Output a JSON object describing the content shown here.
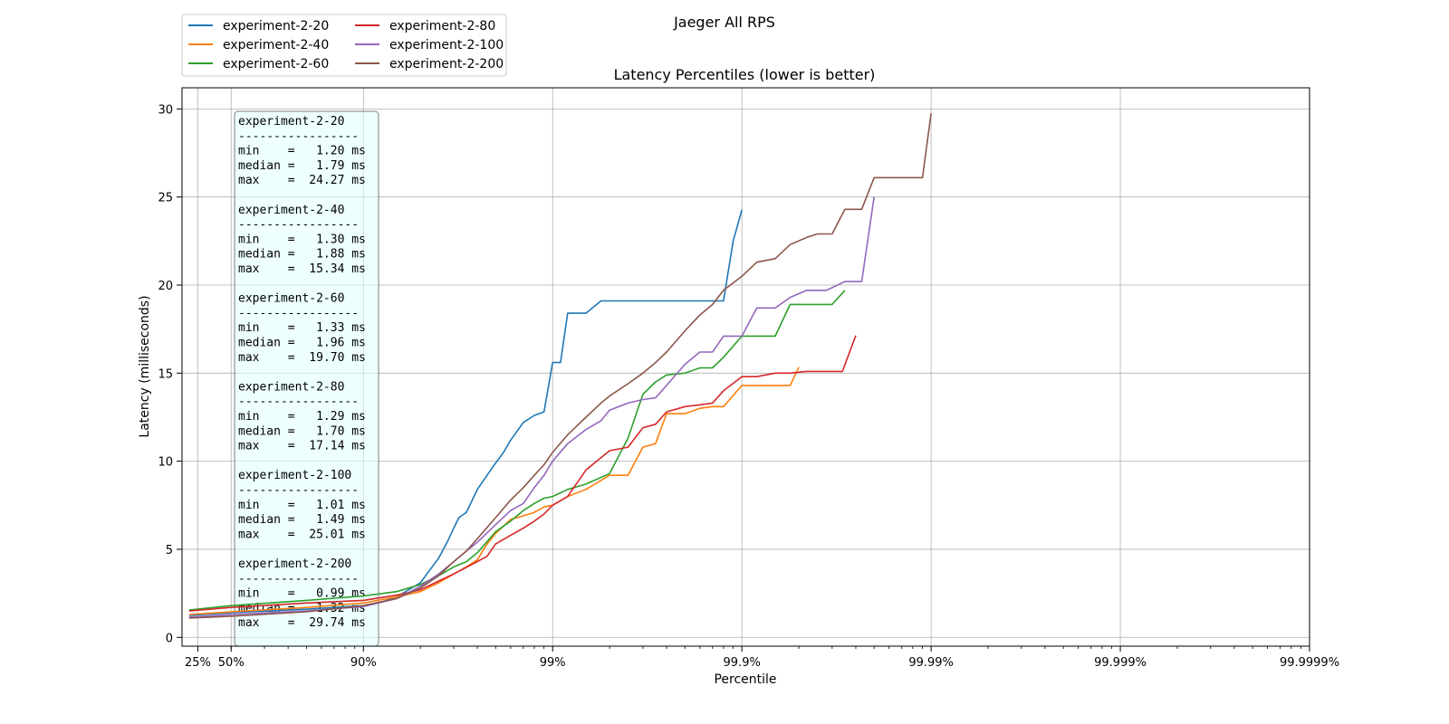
{
  "chart_data": {
    "type": "line",
    "suptitle": "Jaeger All RPS",
    "title": "Latency Percentiles (lower is better)",
    "xlabel": "Percentile",
    "ylabel": "Latency (milliseconds)",
    "x_scale": "log of 1/(1-p)",
    "xlim": [
      1.1,
      1000000
    ],
    "ylim": [
      -0.5,
      31.2
    ],
    "grid": true,
    "legend_placement": "upper-left above plot (2 columns)",
    "x_ticks": [
      {
        "inv": 1.333,
        "label": "25%"
      },
      {
        "inv": 2,
        "label": "50%"
      },
      {
        "inv": 10,
        "label": "90%"
      },
      {
        "inv": 100,
        "label": "99%"
      },
      {
        "inv": 1000,
        "label": "99.9%"
      },
      {
        "inv": 10000,
        "label": "99.99%"
      },
      {
        "inv": 100000,
        "label": "99.999%"
      },
      {
        "inv": 1000000,
        "label": "99.9999%"
      }
    ],
    "y_ticks": [
      0,
      5,
      10,
      15,
      20,
      25,
      30
    ],
    "series": [
      {
        "name": "experiment-2-20",
        "color": "#1f77b4",
        "x": [
          1.2,
          2,
          5,
          10,
          12.5,
          15,
          20,
          25,
          28,
          30,
          32,
          35,
          40,
          45,
          50,
          55,
          60,
          70,
          80,
          90,
          100,
          110,
          120,
          150,
          180,
          200,
          250,
          300,
          350,
          400,
          500,
          600,
          700,
          800,
          900,
          1000
        ],
        "y": [
          1.25,
          1.4,
          1.6,
          1.8,
          2.0,
          2.3,
          3.1,
          4.5,
          5.5,
          6.2,
          6.8,
          7.1,
          8.4,
          9.2,
          9.9,
          10.5,
          11.2,
          12.2,
          12.6,
          12.8,
          15.6,
          15.6,
          18.4,
          18.4,
          19.1,
          19.1,
          19.1,
          19.1,
          19.1,
          19.1,
          19.1,
          19.1,
          19.1,
          19.1,
          22.5,
          24.27
        ]
      },
      {
        "name": "experiment-2-40",
        "color": "#ff7f0e",
        "x": [
          1.2,
          2,
          5,
          10,
          15,
          20,
          25,
          30,
          35,
          40,
          45,
          50,
          60,
          70,
          80,
          90,
          100,
          120,
          150,
          200,
          250,
          300,
          350,
          400,
          500,
          600,
          700,
          800,
          1000,
          1200,
          1500,
          1800,
          2000
        ],
        "y": [
          1.3,
          1.45,
          1.7,
          1.95,
          2.3,
          2.6,
          3.1,
          3.6,
          4.0,
          4.4,
          5.3,
          5.9,
          6.7,
          6.9,
          7.1,
          7.4,
          7.5,
          8.0,
          8.4,
          9.2,
          9.2,
          10.8,
          11.0,
          12.7,
          12.7,
          13.0,
          13.1,
          13.1,
          14.3,
          14.3,
          14.3,
          14.3,
          15.34
        ]
      },
      {
        "name": "experiment-2-60",
        "color": "#2ca02c",
        "x": [
          1.2,
          2,
          5,
          10,
          15,
          20,
          25,
          30,
          35,
          40,
          50,
          60,
          70,
          80,
          90,
          100,
          120,
          150,
          200,
          250,
          300,
          350,
          400,
          500,
          600,
          700,
          800,
          1000,
          1200,
          1500,
          1800,
          2200,
          2600,
          3000,
          3500
        ],
        "y": [
          1.55,
          1.8,
          2.1,
          2.35,
          2.6,
          3.0,
          3.5,
          4.0,
          4.3,
          4.8,
          6.0,
          6.6,
          7.2,
          7.6,
          7.9,
          8.0,
          8.4,
          8.7,
          9.3,
          11.3,
          13.8,
          14.5,
          14.9,
          15.0,
          15.3,
          15.3,
          15.9,
          17.1,
          17.1,
          17.1,
          18.9,
          18.9,
          18.9,
          18.9,
          19.7
        ]
      },
      {
        "name": "experiment-2-80",
        "color": "#d62728",
        "x": [
          1.2,
          2,
          5,
          10,
          15,
          20,
          25,
          30,
          40,
          45,
          50,
          60,
          70,
          80,
          90,
          100,
          120,
          150,
          180,
          200,
          250,
          300,
          350,
          400,
          500,
          600,
          700,
          800,
          1000,
          1200,
          1500,
          1800,
          2200,
          2700,
          3400,
          4000
        ],
        "y": [
          1.5,
          1.7,
          1.95,
          2.1,
          2.4,
          2.7,
          3.2,
          3.6,
          4.3,
          4.6,
          5.3,
          5.8,
          6.2,
          6.6,
          7.0,
          7.5,
          8.0,
          9.5,
          10.2,
          10.6,
          10.8,
          11.9,
          12.1,
          12.8,
          13.1,
          13.2,
          13.3,
          14.0,
          14.8,
          14.8,
          15.0,
          15.0,
          15.1,
          15.1,
          15.1,
          17.14
        ]
      },
      {
        "name": "experiment-2-100",
        "color": "#9467bd",
        "x": [
          1.2,
          2,
          5,
          10,
          15,
          20,
          25,
          30,
          35,
          40,
          50,
          60,
          70,
          80,
          90,
          100,
          120,
          150,
          180,
          200,
          250,
          300,
          350,
          400,
          500,
          600,
          700,
          800,
          1000,
          1200,
          1500,
          1800,
          2200,
          2800,
          3500,
          4300,
          5000
        ],
        "y": [
          1.15,
          1.3,
          1.5,
          1.75,
          2.2,
          2.9,
          3.6,
          4.3,
          4.9,
          5.4,
          6.4,
          7.2,
          7.6,
          8.5,
          9.2,
          10.0,
          11.0,
          11.8,
          12.3,
          12.9,
          13.3,
          13.5,
          13.6,
          14.3,
          15.5,
          16.2,
          16.2,
          17.1,
          17.1,
          18.7,
          18.7,
          19.3,
          19.7,
          19.7,
          20.2,
          20.2,
          25.01
        ]
      },
      {
        "name": "experiment-2-200",
        "color": "#8c564b",
        "x": [
          1.2,
          2,
          5,
          10,
          15,
          20,
          25,
          30,
          35,
          40,
          50,
          60,
          70,
          80,
          90,
          100,
          120,
          150,
          180,
          200,
          250,
          300,
          350,
          400,
          500,
          600,
          700,
          800,
          1000,
          1200,
          1500,
          1800,
          2200,
          2500,
          3000,
          3500,
          4300,
          5000,
          9000,
          10000
        ],
        "y": [
          1.1,
          1.2,
          1.45,
          1.8,
          2.2,
          2.8,
          3.5,
          4.3,
          4.9,
          5.6,
          6.8,
          7.8,
          8.5,
          9.2,
          9.8,
          10.5,
          11.5,
          12.5,
          13.3,
          13.7,
          14.4,
          15.0,
          15.6,
          16.2,
          17.4,
          18.3,
          18.9,
          19.7,
          20.5,
          21.3,
          21.5,
          22.3,
          22.7,
          22.9,
          22.9,
          24.3,
          24.3,
          26.1,
          26.1,
          29.74
        ]
      }
    ],
    "stats_box": [
      {
        "name": "experiment-2-20",
        "separator": "-----------------",
        "min": "min    =   1.20 ms",
        "median": "median =   1.79 ms",
        "max": "max    =  24.27 ms"
      },
      {
        "name": "experiment-2-40",
        "separator": "-----------------",
        "min": "min    =   1.30 ms",
        "median": "median =   1.88 ms",
        "max": "max    =  15.34 ms"
      },
      {
        "name": "experiment-2-60",
        "separator": "-----------------",
        "min": "min    =   1.33 ms",
        "median": "median =   1.96 ms",
        "max": "max    =  19.70 ms"
      },
      {
        "name": "experiment-2-80",
        "separator": "-----------------",
        "min": "min    =   1.29 ms",
        "median": "median =   1.70 ms",
        "max": "max    =  17.14 ms"
      },
      {
        "name": "experiment-2-100",
        "separator": "-----------------",
        "min": "min    =   1.01 ms",
        "median": "median =   1.49 ms",
        "max": "max    =  25.01 ms"
      },
      {
        "name": "experiment-2-200",
        "separator": "-----------------",
        "min": "min    =   0.99 ms",
        "median": "median =   1.32 ms",
        "max": "max    =  29.74 ms"
      }
    ]
  }
}
